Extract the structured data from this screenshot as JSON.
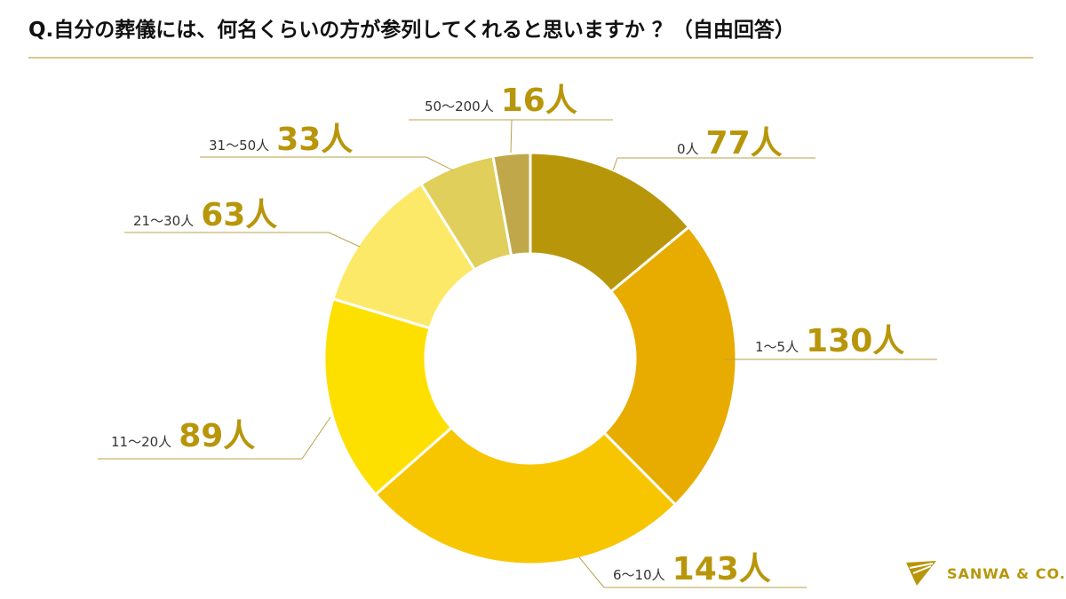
{
  "title": "Q.自分の葬儀には、何名くらいの方が参列してくれると思いますか ？（自由回答）",
  "logo": {
    "text": "SANWA & CO."
  },
  "chart_data": {
    "type": "pie",
    "donut": true,
    "title": "Q.自分の葬儀には、何名くらいの方が参列してくれると思いますか ？（自由回答）",
    "unit": "人",
    "categories": [
      "0人",
      "1〜5人",
      "6〜10人",
      "11〜20人",
      "21〜30人",
      "31〜50人",
      "50〜200人"
    ],
    "values": [
      77,
      130,
      143,
      89,
      63,
      33,
      16
    ],
    "value_labels": [
      "77人",
      "130人",
      "143人",
      "89人",
      "63人",
      "33人",
      "16人"
    ],
    "colors": [
      "#b8960a",
      "#e8ac00",
      "#f7c600",
      "#fde000",
      "#fde968",
      "#e0cf5a",
      "#c0a84a"
    ],
    "start": "top",
    "direction": "clockwise"
  }
}
